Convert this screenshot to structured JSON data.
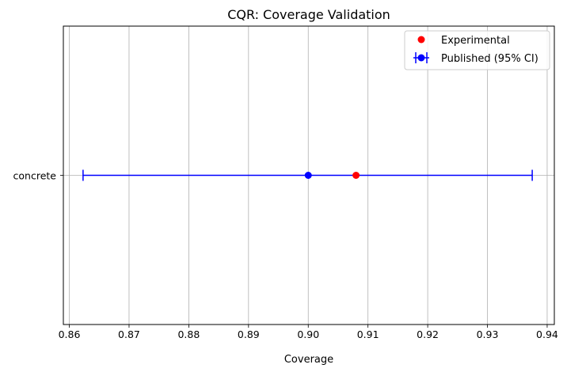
{
  "chart_data": {
    "type": "scatter",
    "title": "CQR: Coverage Validation",
    "xlabel": "Coverage",
    "ylabel": "",
    "xlim": [
      0.859,
      0.9412
    ],
    "xticks": [
      0.86,
      0.87,
      0.88,
      0.89,
      0.9,
      0.91,
      0.92,
      0.93,
      0.94
    ],
    "xtick_labels": [
      "0.86",
      "0.87",
      "0.88",
      "0.89",
      "0.90",
      "0.91",
      "0.92",
      "0.93",
      "0.94"
    ],
    "categories": [
      "concrete"
    ],
    "grid": "x-major",
    "legend_position": "top-right",
    "series": [
      {
        "name": "Experimental",
        "kind": "points",
        "color": "#ff0000",
        "points": [
          {
            "category": "concrete",
            "x": 0.908
          }
        ]
      },
      {
        "name": "Published (95% CI)",
        "kind": "errorbar",
        "color": "#0000ff",
        "points": [
          {
            "category": "concrete",
            "x": 0.9,
            "lower": 0.8623,
            "upper": 0.9375
          }
        ]
      }
    ]
  }
}
